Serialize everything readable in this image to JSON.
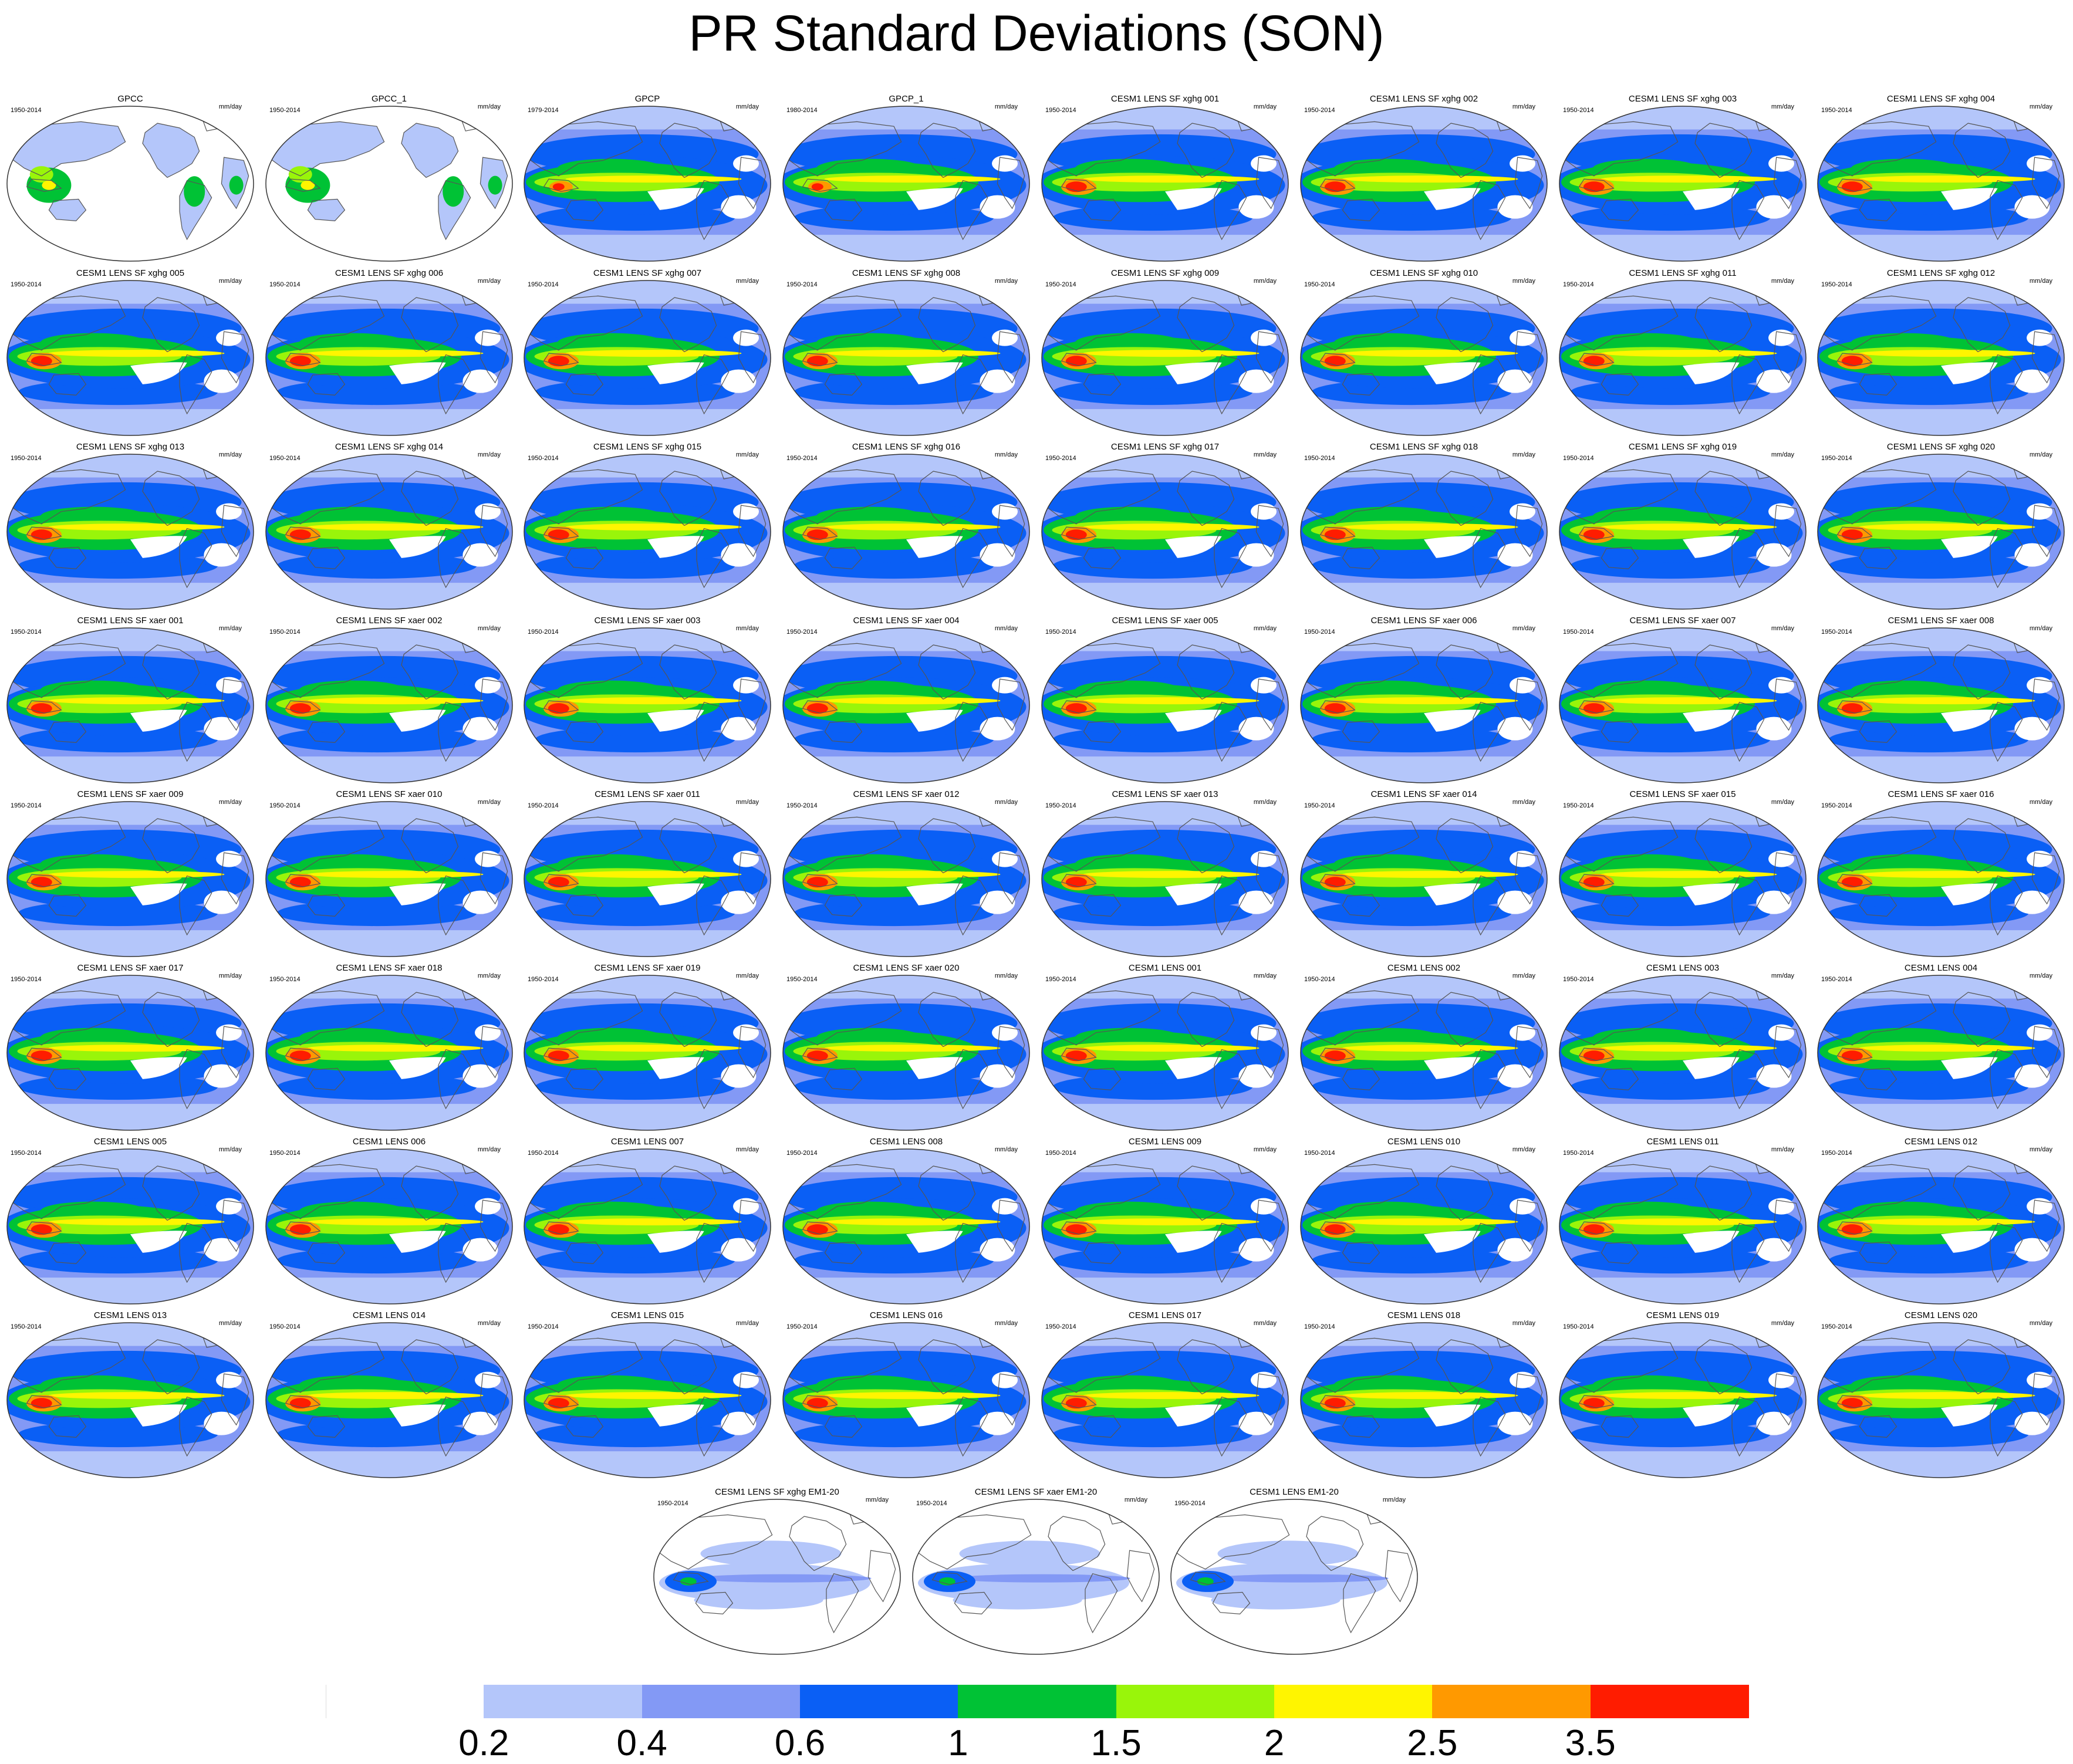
{
  "title": "PR Standard Deviations (SON)",
  "unit": "mm/day",
  "chart_data": {
    "type": "map-grid",
    "title": "PR Standard Deviations (SON)",
    "season": "SON",
    "variable": "PR",
    "projection": "robinson",
    "grid_columns": 8,
    "panels": [
      {
        "title": "GPCC",
        "years": "1950-2014",
        "unit": "mm/day",
        "style": "land"
      },
      {
        "title": "GPCC_1",
        "years": "1950-2014",
        "unit": "mm/day",
        "style": "land"
      },
      {
        "title": "GPCP",
        "years": "1979-2014",
        "unit": "mm/day",
        "style": "obs"
      },
      {
        "title": "GPCP_1",
        "years": "1980-2014",
        "unit": "mm/day",
        "style": "obs"
      },
      {
        "title": "CESM1 LENS SF xghg 001",
        "years": "1950-2014",
        "unit": "mm/day",
        "style": "model"
      },
      {
        "title": "CESM1 LENS SF xghg 002",
        "years": "1950-2014",
        "unit": "mm/day",
        "style": "model"
      },
      {
        "title": "CESM1 LENS SF xghg 003",
        "years": "1950-2014",
        "unit": "mm/day",
        "style": "model"
      },
      {
        "title": "CESM1 LENS SF xghg 004",
        "years": "1950-2014",
        "unit": "mm/day",
        "style": "model"
      },
      {
        "title": "CESM1 LENS SF xghg 005",
        "years": "1950-2014",
        "unit": "mm/day",
        "style": "model"
      },
      {
        "title": "CESM1 LENS SF xghg 006",
        "years": "1950-2014",
        "unit": "mm/day",
        "style": "model"
      },
      {
        "title": "CESM1 LENS SF xghg 007",
        "years": "1950-2014",
        "unit": "mm/day",
        "style": "model"
      },
      {
        "title": "CESM1 LENS SF xghg 008",
        "years": "1950-2014",
        "unit": "mm/day",
        "style": "model"
      },
      {
        "title": "CESM1 LENS SF xghg 009",
        "years": "1950-2014",
        "unit": "mm/day",
        "style": "model"
      },
      {
        "title": "CESM1 LENS SF xghg 010",
        "years": "1950-2014",
        "unit": "mm/day",
        "style": "model"
      },
      {
        "title": "CESM1 LENS SF xghg 011",
        "years": "1950-2014",
        "unit": "mm/day",
        "style": "model"
      },
      {
        "title": "CESM1 LENS SF xghg 012",
        "years": "1950-2014",
        "unit": "mm/day",
        "style": "model"
      },
      {
        "title": "CESM1 LENS SF xghg 013",
        "years": "1950-2014",
        "unit": "mm/day",
        "style": "model"
      },
      {
        "title": "CESM1 LENS SF xghg 014",
        "years": "1950-2014",
        "unit": "mm/day",
        "style": "model"
      },
      {
        "title": "CESM1 LENS SF xghg 015",
        "years": "1950-2014",
        "unit": "mm/day",
        "style": "model"
      },
      {
        "title": "CESM1 LENS SF xghg 016",
        "years": "1950-2014",
        "unit": "mm/day",
        "style": "model"
      },
      {
        "title": "CESM1 LENS SF xghg 017",
        "years": "1950-2014",
        "unit": "mm/day",
        "style": "model"
      },
      {
        "title": "CESM1 LENS SF xghg 018",
        "years": "1950-2014",
        "unit": "mm/day",
        "style": "model"
      },
      {
        "title": "CESM1 LENS SF xghg 019",
        "years": "1950-2014",
        "unit": "mm/day",
        "style": "model"
      },
      {
        "title": "CESM1 LENS SF xghg 020",
        "years": "1950-2014",
        "unit": "mm/day",
        "style": "model"
      },
      {
        "title": "CESM1 LENS SF xaer 001",
        "years": "1950-2014",
        "unit": "mm/day",
        "style": "model"
      },
      {
        "title": "CESM1 LENS SF xaer 002",
        "years": "1950-2014",
        "unit": "mm/day",
        "style": "model"
      },
      {
        "title": "CESM1 LENS SF xaer 003",
        "years": "1950-2014",
        "unit": "mm/day",
        "style": "model"
      },
      {
        "title": "CESM1 LENS SF xaer 004",
        "years": "1950-2014",
        "unit": "mm/day",
        "style": "model"
      },
      {
        "title": "CESM1 LENS SF xaer 005",
        "years": "1950-2014",
        "unit": "mm/day",
        "style": "model"
      },
      {
        "title": "CESM1 LENS SF xaer 006",
        "years": "1950-2014",
        "unit": "mm/day",
        "style": "model"
      },
      {
        "title": "CESM1 LENS SF xaer 007",
        "years": "1950-2014",
        "unit": "mm/day",
        "style": "model"
      },
      {
        "title": "CESM1 LENS SF xaer 008",
        "years": "1950-2014",
        "unit": "mm/day",
        "style": "model"
      },
      {
        "title": "CESM1 LENS SF xaer 009",
        "years": "1950-2014",
        "unit": "mm/day",
        "style": "model"
      },
      {
        "title": "CESM1 LENS SF xaer 010",
        "years": "1950-2014",
        "unit": "mm/day",
        "style": "model"
      },
      {
        "title": "CESM1 LENS SF xaer 011",
        "years": "1950-2014",
        "unit": "mm/day",
        "style": "model"
      },
      {
        "title": "CESM1 LENS SF xaer 012",
        "years": "1950-2014",
        "unit": "mm/day",
        "style": "model"
      },
      {
        "title": "CESM1 LENS SF xaer 013",
        "years": "1950-2014",
        "unit": "mm/day",
        "style": "model"
      },
      {
        "title": "CESM1 LENS SF xaer 014",
        "years": "1950-2014",
        "unit": "mm/day",
        "style": "model"
      },
      {
        "title": "CESM1 LENS SF xaer 015",
        "years": "1950-2014",
        "unit": "mm/day",
        "style": "model"
      },
      {
        "title": "CESM1 LENS SF xaer 016",
        "years": "1950-2014",
        "unit": "mm/day",
        "style": "model"
      },
      {
        "title": "CESM1 LENS SF xaer 017",
        "years": "1950-2014",
        "unit": "mm/day",
        "style": "model"
      },
      {
        "title": "CESM1 LENS SF xaer 018",
        "years": "1950-2014",
        "unit": "mm/day",
        "style": "model"
      },
      {
        "title": "CESM1 LENS SF xaer 019",
        "years": "1950-2014",
        "unit": "mm/day",
        "style": "model"
      },
      {
        "title": "CESM1 LENS SF xaer 020",
        "years": "1950-2014",
        "unit": "mm/day",
        "style": "model"
      },
      {
        "title": "CESM1 LENS 001",
        "years": "1950-2014",
        "unit": "mm/day",
        "style": "model"
      },
      {
        "title": "CESM1 LENS 002",
        "years": "1950-2014",
        "unit": "mm/day",
        "style": "model"
      },
      {
        "title": "CESM1 LENS 003",
        "years": "1950-2014",
        "unit": "mm/day",
        "style": "model"
      },
      {
        "title": "CESM1 LENS 004",
        "years": "1950-2014",
        "unit": "mm/day",
        "style": "model"
      },
      {
        "title": "CESM1 LENS 005",
        "years": "1950-2014",
        "unit": "mm/day",
        "style": "model"
      },
      {
        "title": "CESM1 LENS 006",
        "years": "1950-2014",
        "unit": "mm/day",
        "style": "model"
      },
      {
        "title": "CESM1 LENS 007",
        "years": "1950-2014",
        "unit": "mm/day",
        "style": "model"
      },
      {
        "title": "CESM1 LENS 008",
        "years": "1950-2014",
        "unit": "mm/day",
        "style": "model"
      },
      {
        "title": "CESM1 LENS 009",
        "years": "1950-2014",
        "unit": "mm/day",
        "style": "model"
      },
      {
        "title": "CESM1 LENS 010",
        "years": "1950-2014",
        "unit": "mm/day",
        "style": "model"
      },
      {
        "title": "CESM1 LENS 011",
        "years": "1950-2014",
        "unit": "mm/day",
        "style": "model"
      },
      {
        "title": "CESM1 LENS 012",
        "years": "1950-2014",
        "unit": "mm/day",
        "style": "model"
      },
      {
        "title": "CESM1 LENS 013",
        "years": "1950-2014",
        "unit": "mm/day",
        "style": "model"
      },
      {
        "title": "CESM1 LENS 014",
        "years": "1950-2014",
        "unit": "mm/day",
        "style": "model"
      },
      {
        "title": "CESM1 LENS 015",
        "years": "1950-2014",
        "unit": "mm/day",
        "style": "model"
      },
      {
        "title": "CESM1 LENS 016",
        "years": "1950-2014",
        "unit": "mm/day",
        "style": "model"
      },
      {
        "title": "CESM1 LENS 017",
        "years": "1950-2014",
        "unit": "mm/day",
        "style": "model"
      },
      {
        "title": "CESM1 LENS 018",
        "years": "1950-2014",
        "unit": "mm/day",
        "style": "model"
      },
      {
        "title": "CESM1 LENS 019",
        "years": "1950-2014",
        "unit": "mm/day",
        "style": "model"
      },
      {
        "title": "CESM1 LENS 020",
        "years": "1950-2014",
        "unit": "mm/day",
        "style": "model"
      },
      {
        "title": "CESM1 LENS SF xghg EM1-20",
        "years": "1950-2014",
        "unit": "mm/day",
        "style": "mean"
      },
      {
        "title": "CESM1 LENS SF xaer EM1-20",
        "years": "1950-2014",
        "unit": "mm/day",
        "style": "mean"
      },
      {
        "title": "CESM1 LENS EM1-20",
        "years": "1950-2014",
        "unit": "mm/day",
        "style": "mean"
      }
    ],
    "colorbar": {
      "levels": [
        "0.2",
        "0.4",
        "0.6",
        "1",
        "1.5",
        "2",
        "2.5",
        "3.5"
      ],
      "colors": [
        "#ffffff",
        "#b4c6fa",
        "#8399f5",
        "#0a5ff5",
        "#00c235",
        "#99f50a",
        "#fff500",
        "#ff9900",
        "#ff1c00"
      ],
      "orientation": "horizontal",
      "placement": "bottom"
    }
  }
}
